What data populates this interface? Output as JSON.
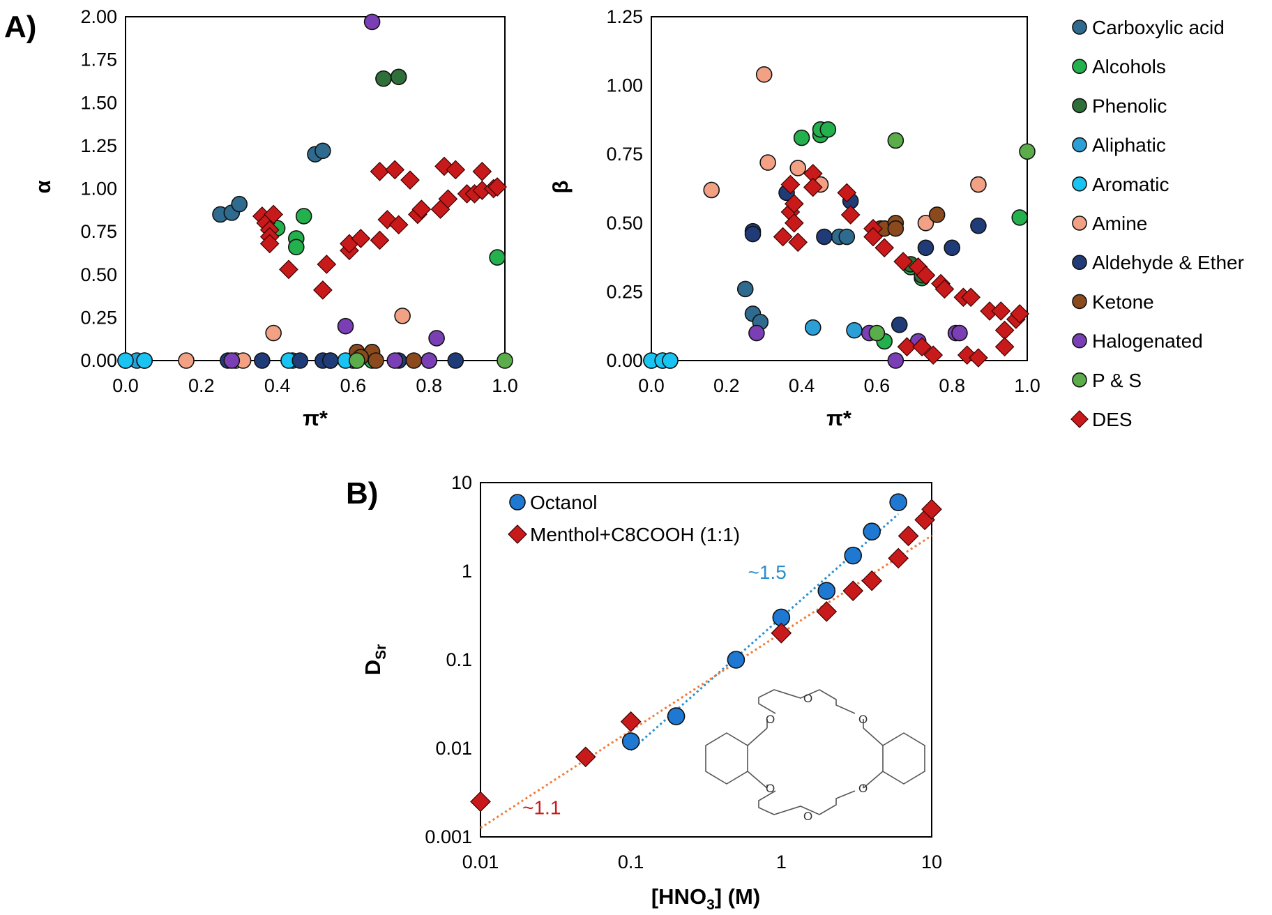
{
  "panel_labels": {
    "a": "A)",
    "b": "B)"
  },
  "categories": [
    {
      "name": "Carboxylic acid",
      "color": "#2e6b8e",
      "marker": "circle"
    },
    {
      "name": "Alcohols",
      "color": "#22b14c",
      "marker": "circle"
    },
    {
      "name": "Phenolic",
      "color": "#2f6f3a",
      "marker": "circle"
    },
    {
      "name": "Aliphatic",
      "color": "#2b9fd6",
      "marker": "circle"
    },
    {
      "name": "Aromatic",
      "color": "#19c3f2",
      "marker": "circle"
    },
    {
      "name": "Amine",
      "color": "#f2a184",
      "marker": "circle"
    },
    {
      "name": "Aldehyde & Ether",
      "color": "#1f3c78",
      "marker": "circle"
    },
    {
      "name": "Ketone",
      "color": "#8b4a1e",
      "marker": "circle"
    },
    {
      "name": "Halogenated",
      "color": "#7b3fb5",
      "marker": "circle"
    },
    {
      "name": "P & S",
      "color": "#5aad4a",
      "marker": "circle"
    },
    {
      "name": "DES",
      "color": "#c81a1a",
      "marker": "diamond"
    }
  ],
  "chart_data": [
    {
      "type": "scatter",
      "xlabel": "π*",
      "ylabel": "α",
      "xlim": [
        0,
        1
      ],
      "ylim": [
        0,
        2
      ],
      "xticks": [
        "0.0",
        "0.2",
        "0.4",
        "0.6",
        "0.8",
        "1.0"
      ],
      "yticks": [
        "0.00",
        "0.25",
        "0.50",
        "0.75",
        "1.00",
        "1.25",
        "1.50",
        "1.75",
        "2.00"
      ],
      "series": [
        {
          "name": "Carboxylic acid",
          "points": [
            [
              0.25,
              0.85
            ],
            [
              0.28,
              0.86
            ],
            [
              0.3,
              0.91
            ],
            [
              0.5,
              1.2
            ],
            [
              0.52,
              1.22
            ]
          ]
        },
        {
          "name": "Alcohols",
          "points": [
            [
              0.4,
              0.77
            ],
            [
              0.45,
              0.71
            ],
            [
              0.45,
              0.66
            ],
            [
              0.47,
              0.84
            ],
            [
              0.98,
              0.6
            ],
            [
              0.6,
              0.0
            ],
            [
              0.65,
              0.0
            ]
          ]
        },
        {
          "name": "Phenolic",
          "points": [
            [
              0.68,
              1.64
            ],
            [
              0.72,
              1.65
            ]
          ]
        },
        {
          "name": "Aliphatic",
          "points": [
            [
              0.0,
              0.0
            ],
            [
              0.03,
              0.0
            ],
            [
              0.05,
              0.0
            ],
            [
              0.44,
              0.0
            ],
            [
              0.54,
              0.0
            ]
          ]
        },
        {
          "name": "Aromatic",
          "points": [
            [
              0.0,
              0.0
            ],
            [
              0.05,
              0.0
            ],
            [
              0.43,
              0.0
            ],
            [
              0.58,
              0.0
            ]
          ]
        },
        {
          "name": "Amine",
          "points": [
            [
              0.16,
              0.0
            ],
            [
              0.29,
              0.0
            ],
            [
              0.31,
              0.0
            ],
            [
              0.39,
              0.16
            ],
            [
              0.73,
              0.26
            ]
          ]
        },
        {
          "name": "Aldehyde & Ether",
          "points": [
            [
              0.27,
              0.0
            ],
            [
              0.36,
              0.0
            ],
            [
              0.46,
              0.0
            ],
            [
              0.52,
              0.0
            ],
            [
              0.54,
              0.0
            ],
            [
              0.72,
              0.0
            ],
            [
              0.8,
              0.0
            ],
            [
              0.87,
              0.0
            ]
          ]
        },
        {
          "name": "Ketone",
          "points": [
            [
              0.61,
              0.05
            ],
            [
              0.65,
              0.05
            ],
            [
              0.62,
              0.02
            ],
            [
              0.66,
              0.0
            ],
            [
              0.76,
              0.0
            ]
          ]
        },
        {
          "name": "Halogenated",
          "points": [
            [
              0.65,
              1.97
            ],
            [
              0.28,
              0.0
            ],
            [
              0.58,
              0.2
            ],
            [
              0.82,
              0.13
            ],
            [
              0.71,
              0.0
            ],
            [
              0.8,
              0.0
            ]
          ]
        },
        {
          "name": "P & S",
          "points": [
            [
              1.0,
              0.0
            ],
            [
              0.61,
              0.0
            ]
          ]
        },
        {
          "name": "DES",
          "points": [
            [
              0.36,
              0.84
            ],
            [
              0.37,
              0.8
            ],
            [
              0.38,
              0.76
            ],
            [
              0.38,
              0.72
            ],
            [
              0.38,
              0.68
            ],
            [
              0.39,
              0.85
            ],
            [
              0.43,
              0.53
            ],
            [
              0.52,
              0.41
            ],
            [
              0.53,
              0.56
            ],
            [
              0.59,
              0.64
            ],
            [
              0.59,
              0.68
            ],
            [
              0.62,
              0.71
            ],
            [
              0.67,
              0.7
            ],
            [
              0.67,
              1.1
            ],
            [
              0.69,
              0.82
            ],
            [
              0.71,
              1.11
            ],
            [
              0.72,
              0.79
            ],
            [
              0.75,
              1.05
            ],
            [
              0.77,
              0.85
            ],
            [
              0.78,
              0.88
            ],
            [
              0.83,
              0.88
            ],
            [
              0.84,
              1.13
            ],
            [
              0.85,
              0.94
            ],
            [
              0.87,
              1.11
            ],
            [
              0.9,
              0.97
            ],
            [
              0.92,
              0.97
            ],
            [
              0.94,
              1.1
            ],
            [
              0.94,
              0.99
            ],
            [
              0.97,
              1.0
            ],
            [
              0.98,
              1.01
            ]
          ]
        }
      ]
    },
    {
      "type": "scatter",
      "xlabel": "π*",
      "ylabel": "β",
      "xlim": [
        0,
        1
      ],
      "ylim": [
        0,
        1.25
      ],
      "xticks": [
        "0.0",
        "0.2",
        "0.4",
        "0.6",
        "0.8",
        "1.0"
      ],
      "yticks": [
        "0.00",
        "0.25",
        "0.50",
        "0.75",
        "1.00",
        "1.25"
      ],
      "series": [
        {
          "name": "Carboxylic acid",
          "points": [
            [
              0.25,
              0.26
            ],
            [
              0.27,
              0.17
            ],
            [
              0.29,
              0.14
            ],
            [
              0.5,
              0.45
            ],
            [
              0.52,
              0.45
            ]
          ]
        },
        {
          "name": "Alcohols",
          "points": [
            [
              0.4,
              0.81
            ],
            [
              0.45,
              0.82
            ],
            [
              0.45,
              0.84
            ],
            [
              0.47,
              0.84
            ],
            [
              0.98,
              0.52
            ],
            [
              0.62,
              0.07
            ],
            [
              0.69,
              0.34
            ],
            [
              0.72,
              0.3
            ]
          ]
        },
        {
          "name": "Phenolic",
          "points": [
            [
              0.69,
              0.35
            ],
            [
              0.72,
              0.31
            ]
          ]
        },
        {
          "name": "Aliphatic",
          "points": [
            [
              0.0,
              0.0
            ],
            [
              0.03,
              0.0
            ],
            [
              0.05,
              0.0
            ],
            [
              0.43,
              0.12
            ],
            [
              0.54,
              0.11
            ]
          ]
        },
        {
          "name": "Aromatic",
          "points": [
            [
              0.0,
              0.0
            ],
            [
              0.03,
              0.0
            ],
            [
              0.05,
              0.0
            ]
          ]
        },
        {
          "name": "Amine",
          "points": [
            [
              0.16,
              0.62
            ],
            [
              0.3,
              1.04
            ],
            [
              0.31,
              0.72
            ],
            [
              0.39,
              0.7
            ],
            [
              0.45,
              0.64
            ],
            [
              0.73,
              0.5
            ],
            [
              0.87,
              0.64
            ]
          ]
        },
        {
          "name": "Aldehyde & Ether",
          "points": [
            [
              0.27,
              0.47
            ],
            [
              0.27,
              0.46
            ],
            [
              0.36,
              0.61
            ],
            [
              0.46,
              0.45
            ],
            [
              0.53,
              0.58
            ],
            [
              0.66,
              0.13
            ],
            [
              0.73,
              0.41
            ],
            [
              0.8,
              0.41
            ],
            [
              0.87,
              0.49
            ]
          ]
        },
        {
          "name": "Ketone",
          "points": [
            [
              0.61,
              0.48
            ],
            [
              0.62,
              0.48
            ],
            [
              0.65,
              0.5
            ],
            [
              0.65,
              0.48
            ],
            [
              0.76,
              0.53
            ]
          ]
        },
        {
          "name": "Halogenated",
          "points": [
            [
              0.28,
              0.1
            ],
            [
              0.58,
              0.1
            ],
            [
              0.65,
              0.0
            ],
            [
              0.71,
              0.07
            ],
            [
              0.81,
              0.1
            ],
            [
              0.82,
              0.1
            ]
          ]
        },
        {
          "name": "P & S",
          "points": [
            [
              0.65,
              0.8
            ],
            [
              1.0,
              0.76
            ],
            [
              0.6,
              0.1
            ]
          ]
        },
        {
          "name": "DES",
          "points": [
            [
              0.35,
              0.45
            ],
            [
              0.37,
              0.54
            ],
            [
              0.37,
              0.64
            ],
            [
              0.38,
              0.57
            ],
            [
              0.38,
              0.5
            ],
            [
              0.39,
              0.43
            ],
            [
              0.43,
              0.68
            ],
            [
              0.43,
              0.63
            ],
            [
              0.52,
              0.61
            ],
            [
              0.53,
              0.53
            ],
            [
              0.59,
              0.48
            ],
            [
              0.59,
              0.45
            ],
            [
              0.62,
              0.41
            ],
            [
              0.67,
              0.36
            ],
            [
              0.68,
              0.05
            ],
            [
              0.71,
              0.34
            ],
            [
              0.72,
              0.05
            ],
            [
              0.73,
              0.31
            ],
            [
              0.75,
              0.02
            ],
            [
              0.77,
              0.28
            ],
            [
              0.78,
              0.26
            ],
            [
              0.83,
              0.23
            ],
            [
              0.84,
              0.02
            ],
            [
              0.85,
              0.23
            ],
            [
              0.87,
              0.01
            ],
            [
              0.9,
              0.18
            ],
            [
              0.93,
              0.18
            ],
            [
              0.94,
              0.11
            ],
            [
              0.94,
              0.05
            ],
            [
              0.97,
              0.15
            ],
            [
              0.98,
              0.17
            ]
          ]
        }
      ]
    },
    {
      "type": "scatter",
      "xscale": "log",
      "yscale": "log",
      "xlabel": "[HNO3] (M)",
      "ylabel": "DSr",
      "xlim": [
        0.01,
        10
      ],
      "ylim": [
        0.001,
        10
      ],
      "xticks": [
        {
          "value": 0.01,
          "label": "0.01"
        },
        {
          "value": 0.1,
          "label": "0.1"
        },
        {
          "value": 1,
          "label": "1"
        },
        {
          "value": 10,
          "label": "10"
        }
      ],
      "yticks": [
        {
          "value": 0.001,
          "label": "0.001"
        },
        {
          "value": 0.01,
          "label": "0.01"
        },
        {
          "value": 0.1,
          "label": "0.1"
        },
        {
          "value": 1,
          "label": "1"
        },
        {
          "value": 10,
          "label": "10"
        }
      ],
      "legend_position": "top-left",
      "series": [
        {
          "name": "Octanol",
          "color": "#1f78d1",
          "marker": "circle",
          "points": [
            [
              0.1,
              0.012
            ],
            [
              0.2,
              0.023
            ],
            [
              0.5,
              0.1
            ],
            [
              1,
              0.3
            ],
            [
              2,
              0.6
            ],
            [
              3,
              1.5
            ],
            [
              4,
              2.8
            ],
            [
              6,
              6.0
            ]
          ]
        },
        {
          "name": "Menthol+C8COOH (1:1)",
          "color": "#c81a1a",
          "marker": "diamond",
          "points": [
            [
              0.01,
              0.0025
            ],
            [
              0.05,
              0.008
            ],
            [
              0.1,
              0.02
            ],
            [
              1,
              0.2
            ],
            [
              2,
              0.35
            ],
            [
              3,
              0.6
            ],
            [
              4,
              0.78
            ],
            [
              6,
              1.4
            ],
            [
              7,
              2.5
            ],
            [
              9,
              3.8
            ],
            [
              10,
              5.0
            ]
          ]
        }
      ],
      "fits": [
        {
          "series": "Octanol",
          "color": "#2a8fd0",
          "slope": 1.5,
          "x_range": [
            0.1,
            6
          ],
          "y_at_x1": 0.3
        },
        {
          "series": "Menthol+C8COOH (1:1)",
          "color": "#f07b3a",
          "slope": 1.1,
          "x_range": [
            0.01,
            10
          ],
          "y_at_x1": 0.2
        }
      ],
      "annotations": [
        {
          "text": "~1.5",
          "color": "#2a8fd0",
          "at": [
            0.6,
            0.82
          ]
        },
        {
          "text": "~1.1",
          "color": "#c81a1a",
          "at": [
            0.019,
            0.0018
          ]
        }
      ],
      "inset": "structure of dicyclohexano-18-crown-6 (ring with six O atoms fused to two cyclohexane rings)",
      "inset_atom_label": "O"
    }
  ]
}
